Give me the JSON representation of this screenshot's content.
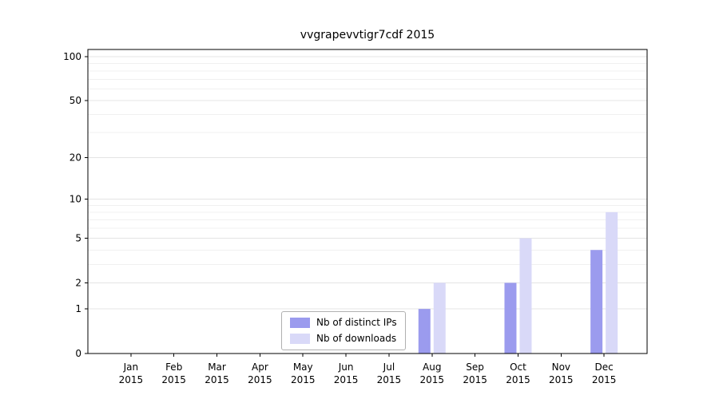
{
  "chart_data": {
    "type": "bar",
    "title": "vvgrapevvtigr7cdf 2015",
    "year": "2015",
    "categories": [
      "Jan",
      "Feb",
      "Mar",
      "Apr",
      "May",
      "Jun",
      "Jul",
      "Aug",
      "Sep",
      "Oct",
      "Nov",
      "Dec"
    ],
    "series": [
      {
        "name": "Nb of distinct IPs",
        "color": "#9b9bee",
        "values": [
          0,
          0,
          0,
          0,
          0,
          0,
          0,
          1,
          0,
          2,
          0,
          4
        ]
      },
      {
        "name": "Nb of downloads",
        "color": "#d9d9f8",
        "values": [
          0,
          0,
          0,
          0,
          0,
          0,
          0,
          2,
          0,
          5,
          0,
          8
        ]
      }
    ],
    "yscale": "log1p",
    "yticks": [
      0,
      1,
      2,
      5,
      10,
      20,
      50,
      100
    ],
    "minor_yticks": [
      3,
      4,
      6,
      7,
      8,
      9,
      30,
      40,
      60,
      70,
      80,
      90
    ],
    "ylim": [
      0,
      112
    ],
    "grid": "horizontal",
    "legend_position": "lower center",
    "colors": {
      "axis": "#000000",
      "major_grid": "#e4e4e4",
      "minor_grid": "#f0f0f0",
      "tick_text": "#000000"
    }
  }
}
